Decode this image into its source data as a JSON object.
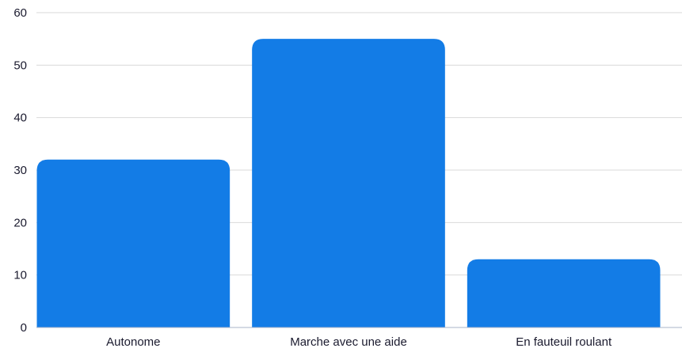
{
  "chart_data": {
    "type": "bar",
    "categories": [
      "Autonome",
      "Marche avec une aide",
      "En fauteuil roulant"
    ],
    "values": [
      32,
      55,
      13
    ],
    "title": "",
    "xlabel": "",
    "ylabel": "",
    "ylim": [
      0,
      60
    ],
    "yticks": [
      "0",
      "10",
      "20",
      "30",
      "40",
      "50",
      "60"
    ],
    "grid": true,
    "legend": "none",
    "bar_color": "#137ce6",
    "grid_color": "#d9d9d9",
    "axis_color": "#aab4c8"
  }
}
